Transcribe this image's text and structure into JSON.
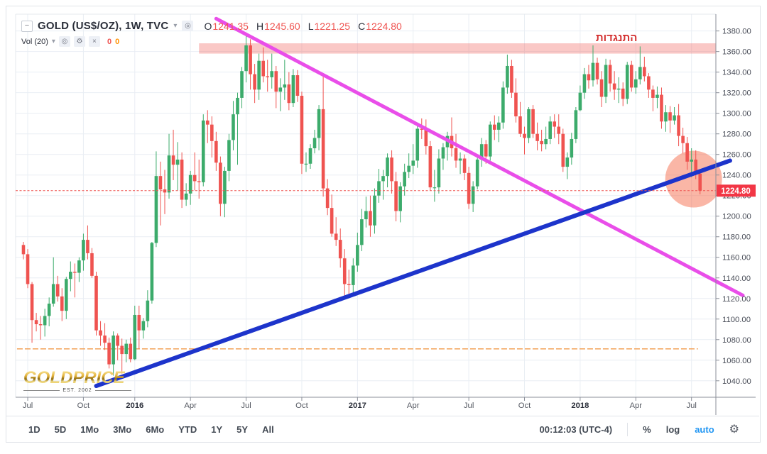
{
  "legend": {
    "symbol_title": "GOLD (US$/OZ), 1W, TVC",
    "ohlc": {
      "o_label": "O",
      "o_value": "1241.35",
      "h_label": "H",
      "h_value": "1245.60",
      "l_label": "L",
      "l_value": "1221.25",
      "c_label": "C",
      "c_value": "1224.80"
    },
    "volume_label": "Vol (20)",
    "volume_values": [
      "0",
      "0"
    ]
  },
  "icons": {
    "caret": "▾",
    "visibility": "◎",
    "gear": "⚙",
    "close": "×",
    "collapse": "−"
  },
  "logo": {
    "name": "GOLDPRICE",
    "established": "EST. 2002"
  },
  "toolbar": {
    "ranges": [
      "1D",
      "5D",
      "1Mo",
      "3Mo",
      "6Mo",
      "YTD",
      "1Y",
      "5Y",
      "All"
    ],
    "clock": "00:12:03 (UTC-4)",
    "percent": "%",
    "log": "log",
    "auto": "auto"
  },
  "chart_data": {
    "type": "candlestick",
    "symbol": "GOLD (US$/OZ)",
    "interval": "1W",
    "exchange": "TVC",
    "last": {
      "open": 1241.35,
      "high": 1245.6,
      "low": 1221.25,
      "close": 1224.8
    },
    "ylim": [
      1024,
      1397
    ],
    "y_ticks": [
      1380,
      1360,
      1340,
      1320,
      1300,
      1280,
      1260,
      1240,
      1220,
      1200,
      1180,
      1160,
      1140,
      1120,
      1100,
      1080,
      1060,
      1040
    ],
    "x_ticks": [
      {
        "week": 1,
        "label": "Jul",
        "bold": false
      },
      {
        "week": 14,
        "label": "Oct",
        "bold": false
      },
      {
        "week": 26,
        "label": "2016",
        "bold": true
      },
      {
        "week": 39,
        "label": "Apr",
        "bold": false
      },
      {
        "week": 52,
        "label": "Jul",
        "bold": false
      },
      {
        "week": 65,
        "label": "Oct",
        "bold": false
      },
      {
        "week": 78,
        "label": "2017",
        "bold": true
      },
      {
        "week": 91,
        "label": "Apr",
        "bold": false
      },
      {
        "week": 104,
        "label": "Jul",
        "bold": false
      },
      {
        "week": 117,
        "label": "Oct",
        "bold": false
      },
      {
        "week": 130,
        "label": "2018",
        "bold": true
      },
      {
        "week": 143,
        "label": "Apr",
        "bold": false
      },
      {
        "week": 156,
        "label": "Jul",
        "bold": false
      }
    ],
    "colors": {
      "up": "#3cab6b",
      "down": "#ef5350",
      "grid": "#e9eef4",
      "axis": "#8b8f99",
      "label_bg": "#f23645",
      "dotted": "#ef5350"
    },
    "annotations": {
      "resistance_zone": {
        "price_top": 1368,
        "price_bottom": 1358,
        "from_week": 41,
        "color": "rgba(242,96,92,0.35)"
      },
      "resistance_label": {
        "text": "התנגדות",
        "week": 138.5,
        "price": 1370,
        "color": "#d32f2f"
      },
      "downtrend_line": {
        "from": {
          "week": 45,
          "price": 1392
        },
        "to": {
          "week": 168,
          "price": 1123
        },
        "color": "#e94ee9",
        "width": 5
      },
      "uptrend_line": {
        "from": {
          "week": 17,
          "price": 1035
        },
        "to": {
          "week": 165,
          "price": 1254
        },
        "color": "#1d34cb",
        "width": 6
      },
      "highlight_circle": {
        "week": 156.5,
        "price": 1236,
        "radius_px": 40,
        "color": "rgba(244,94,58,0.45)"
      },
      "support_line": {
        "price": 1071,
        "from_week": -1.5,
        "to_week": 157.5,
        "color": "#f2994a"
      },
      "last_price_line": {
        "price": 1224.8
      }
    },
    "candles": [
      [
        1172,
        1175,
        1158,
        1163
      ],
      [
        1163,
        1168,
        1130,
        1134
      ],
      [
        1134,
        1136,
        1077,
        1099
      ],
      [
        1099,
        1106,
        1088,
        1095
      ],
      [
        1095,
        1103,
        1080,
        1094
      ],
      [
        1094,
        1110,
        1083,
        1103
      ],
      [
        1103,
        1121,
        1093,
        1115
      ],
      [
        1115,
        1160,
        1112,
        1134
      ],
      [
        1134,
        1142,
        1117,
        1122
      ],
      [
        1122,
        1130,
        1098,
        1108
      ],
      [
        1108,
        1141,
        1100,
        1139
      ],
      [
        1139,
        1156,
        1127,
        1146
      ],
      [
        1146,
        1154,
        1121,
        1145
      ],
      [
        1145,
        1160,
        1136,
        1157
      ],
      [
        1157,
        1183,
        1147,
        1177
      ],
      [
        1177,
        1191,
        1158,
        1164
      ],
      [
        1164,
        1169,
        1140,
        1142
      ],
      [
        1142,
        1146,
        1084,
        1089
      ],
      [
        1089,
        1098,
        1074,
        1084
      ],
      [
        1084,
        1096,
        1070,
        1077
      ],
      [
        1077,
        1082,
        1052,
        1056
      ],
      [
        1056,
        1088,
        1045,
        1084
      ],
      [
        1084,
        1086,
        1060,
        1074
      ],
      [
        1074,
        1081,
        1047,
        1066
      ],
      [
        1066,
        1080,
        1058,
        1076
      ],
      [
        1076,
        1082,
        1058,
        1061
      ],
      [
        1061,
        1113,
        1060,
        1104
      ],
      [
        1104,
        1113,
        1071,
        1089
      ],
      [
        1089,
        1101,
        1081,
        1098
      ],
      [
        1098,
        1128,
        1092,
        1118
      ],
      [
        1118,
        1175,
        1115,
        1174
      ],
      [
        1174,
        1263,
        1170,
        1239
      ],
      [
        1239,
        1253,
        1191,
        1226
      ],
      [
        1226,
        1245,
        1202,
        1223
      ],
      [
        1223,
        1280,
        1217,
        1259
      ],
      [
        1259,
        1284,
        1235,
        1250
      ],
      [
        1250,
        1272,
        1225,
        1255
      ],
      [
        1255,
        1262,
        1208,
        1216
      ],
      [
        1216,
        1232,
        1210,
        1222
      ],
      [
        1222,
        1244,
        1211,
        1240
      ],
      [
        1240,
        1262,
        1225,
        1234
      ],
      [
        1234,
        1255,
        1217,
        1233
      ],
      [
        1233,
        1299,
        1229,
        1293
      ],
      [
        1293,
        1303,
        1271,
        1289
      ],
      [
        1289,
        1297,
        1257,
        1273
      ],
      [
        1273,
        1282,
        1244,
        1252
      ],
      [
        1252,
        1258,
        1200,
        1212
      ],
      [
        1212,
        1248,
        1199,
        1244
      ],
      [
        1244,
        1280,
        1234,
        1274
      ],
      [
        1274,
        1312,
        1264,
        1299
      ],
      [
        1299,
        1320,
        1250,
        1315
      ],
      [
        1315,
        1345,
        1305,
        1341
      ],
      [
        1341,
        1375,
        1330,
        1366
      ],
      [
        1366,
        1372,
        1323,
        1338
      ],
      [
        1338,
        1348,
        1310,
        1323
      ],
      [
        1323,
        1358,
        1313,
        1351
      ],
      [
        1351,
        1364,
        1330,
        1336
      ],
      [
        1336,
        1352,
        1321,
        1335
      ],
      [
        1335,
        1358,
        1324,
        1341
      ],
      [
        1341,
        1346,
        1305,
        1321
      ],
      [
        1321,
        1334,
        1302,
        1325
      ],
      [
        1325,
        1352,
        1313,
        1328
      ],
      [
        1328,
        1340,
        1303,
        1310
      ],
      [
        1310,
        1343,
        1306,
        1337
      ],
      [
        1337,
        1342,
        1311,
        1317
      ],
      [
        1317,
        1321,
        1241,
        1251
      ],
      [
        1251,
        1262,
        1243,
        1251
      ],
      [
        1251,
        1270,
        1246,
        1266
      ],
      [
        1266,
        1284,
        1261,
        1276
      ],
      [
        1276,
        1308,
        1264,
        1304
      ],
      [
        1304,
        1337,
        1219,
        1227
      ],
      [
        1227,
        1236,
        1201,
        1208
      ],
      [
        1208,
        1221,
        1180,
        1183
      ],
      [
        1183,
        1199,
        1171,
        1177
      ],
      [
        1177,
        1188,
        1150,
        1159
      ],
      [
        1159,
        1168,
        1122,
        1134
      ],
      [
        1134,
        1148,
        1124,
        1133
      ],
      [
        1133,
        1159,
        1126,
        1152
      ],
      [
        1152,
        1184,
        1146,
        1172
      ],
      [
        1172,
        1207,
        1166,
        1197
      ],
      [
        1197,
        1219,
        1189,
        1205
      ],
      [
        1205,
        1220,
        1180,
        1191
      ],
      [
        1191,
        1227,
        1183,
        1220
      ],
      [
        1220,
        1246,
        1213,
        1234
      ],
      [
        1234,
        1245,
        1216,
        1239
      ],
      [
        1239,
        1261,
        1228,
        1257
      ],
      [
        1257,
        1264,
        1222,
        1234
      ],
      [
        1234,
        1243,
        1195,
        1205
      ],
      [
        1205,
        1233,
        1194,
        1229
      ],
      [
        1229,
        1251,
        1220,
        1243
      ],
      [
        1243,
        1261,
        1237,
        1249
      ],
      [
        1249,
        1270,
        1241,
        1254
      ],
      [
        1254,
        1289,
        1247,
        1285
      ],
      [
        1285,
        1295,
        1275,
        1284
      ],
      [
        1284,
        1294,
        1260,
        1268
      ],
      [
        1268,
        1273,
        1225,
        1228
      ],
      [
        1228,
        1245,
        1214,
        1228
      ],
      [
        1228,
        1265,
        1222,
        1256
      ],
      [
        1256,
        1271,
        1245,
        1267
      ],
      [
        1267,
        1282,
        1254,
        1278
      ],
      [
        1278,
        1296,
        1258,
        1266
      ],
      [
        1266,
        1280,
        1247,
        1254
      ],
      [
        1254,
        1262,
        1241,
        1256
      ],
      [
        1256,
        1260,
        1235,
        1242
      ],
      [
        1242,
        1248,
        1207,
        1212
      ],
      [
        1212,
        1234,
        1204,
        1229
      ],
      [
        1229,
        1260,
        1226,
        1255
      ],
      [
        1255,
        1276,
        1248,
        1270
      ],
      [
        1270,
        1274,
        1251,
        1258
      ],
      [
        1258,
        1292,
        1254,
        1289
      ],
      [
        1289,
        1298,
        1274,
        1284
      ],
      [
        1284,
        1297,
        1272,
        1291
      ],
      [
        1291,
        1331,
        1285,
        1325
      ],
      [
        1325,
        1357,
        1319,
        1346
      ],
      [
        1346,
        1352,
        1315,
        1320
      ],
      [
        1320,
        1334,
        1291,
        1297
      ],
      [
        1297,
        1311,
        1277,
        1280
      ],
      [
        1280,
        1287,
        1260,
        1276
      ],
      [
        1276,
        1306,
        1271,
        1304
      ],
      [
        1304,
        1308,
        1276,
        1280
      ],
      [
        1280,
        1291,
        1264,
        1273
      ],
      [
        1273,
        1284,
        1263,
        1270
      ],
      [
        1270,
        1287,
        1265,
        1275
      ],
      [
        1275,
        1297,
        1270,
        1292
      ],
      [
        1292,
        1299,
        1276,
        1287
      ],
      [
        1287,
        1299,
        1270,
        1280
      ],
      [
        1280,
        1285,
        1243,
        1248
      ],
      [
        1248,
        1262,
        1236,
        1257
      ],
      [
        1257,
        1281,
        1250,
        1275
      ],
      [
        1275,
        1306,
        1271,
        1303
      ],
      [
        1303,
        1327,
        1302,
        1320
      ],
      [
        1320,
        1344,
        1314,
        1338
      ],
      [
        1338,
        1347,
        1324,
        1332
      ],
      [
        1332,
        1366,
        1326,
        1349
      ],
      [
        1349,
        1354,
        1328,
        1333
      ],
      [
        1333,
        1341,
        1306,
        1316
      ],
      [
        1316,
        1353,
        1310,
        1347
      ],
      [
        1347,
        1352,
        1321,
        1329
      ],
      [
        1329,
        1341,
        1313,
        1323
      ],
      [
        1323,
        1335,
        1310,
        1324
      ],
      [
        1324,
        1330,
        1307,
        1314
      ],
      [
        1314,
        1350,
        1309,
        1347
      ],
      [
        1347,
        1351,
        1321,
        1325
      ],
      [
        1325,
        1341,
        1319,
        1333
      ],
      [
        1333,
        1365,
        1328,
        1345
      ],
      [
        1345,
        1355,
        1331,
        1336
      ],
      [
        1336,
        1339,
        1315,
        1323
      ],
      [
        1323,
        1327,
        1302,
        1315
      ],
      [
        1315,
        1326,
        1305,
        1318
      ],
      [
        1318,
        1325,
        1285,
        1292
      ],
      [
        1292,
        1308,
        1282,
        1301
      ],
      [
        1301,
        1307,
        1281,
        1293
      ],
      [
        1293,
        1306,
        1289,
        1298
      ],
      [
        1298,
        1309,
        1268,
        1278
      ],
      [
        1278,
        1286,
        1261,
        1271
      ],
      [
        1271,
        1277,
        1245,
        1253
      ],
      [
        1253,
        1266,
        1238,
        1255
      ],
      [
        1255,
        1264,
        1236,
        1241
      ],
      [
        1241.35,
        1245.6,
        1221.25,
        1224.8
      ]
    ]
  }
}
